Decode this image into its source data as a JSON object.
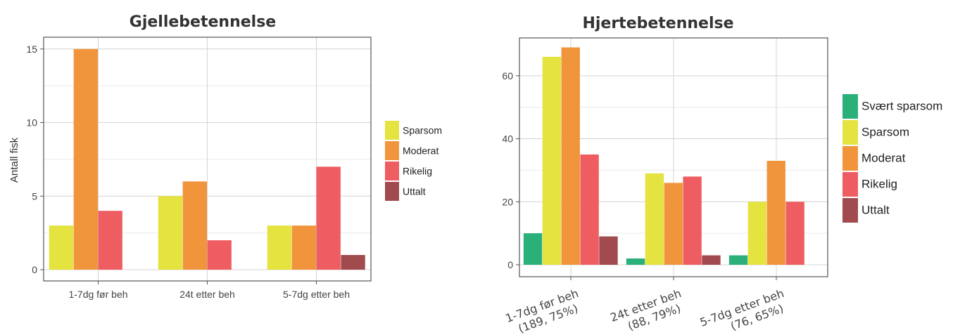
{
  "chart_data": [
    {
      "type": "bar",
      "title": "Gjellebetennelse",
      "ylabel": "Antall fisk",
      "xlabel": "",
      "ylim": [
        0,
        15.8
      ],
      "yticks": [
        0,
        5,
        10,
        15
      ],
      "grid": true,
      "legend_position": "right",
      "categories": [
        "1-7dg før beh",
        "24t etter beh",
        "5-7dg etter beh"
      ],
      "series": [
        {
          "name": "Sparsom",
          "color": "#e4e33f",
          "values": [
            3,
            5,
            3
          ]
        },
        {
          "name": "Moderat",
          "color": "#f1953d",
          "values": [
            15,
            6,
            3
          ]
        },
        {
          "name": "Rikelig",
          "color": "#ee5d62",
          "values": [
            4,
            2,
            7
          ]
        },
        {
          "name": "Uttalt",
          "color": "#a14b4e",
          "values": [
            0,
            0,
            1
          ]
        }
      ]
    },
    {
      "type": "bar",
      "title": "Hjertebetennelse",
      "ylabel": "",
      "xlabel": "",
      "ylim": [
        0,
        72
      ],
      "yticks": [
        0,
        20,
        40,
        60
      ],
      "grid": true,
      "legend_position": "right",
      "categories": [
        [
          "1-7dg før beh",
          "(189, 75%)"
        ],
        [
          "24t etter beh",
          "(88, 79%)"
        ],
        [
          "5-7dg etter beh",
          "(76, 65%)"
        ]
      ],
      "series": [
        {
          "name": "Svært sparsom",
          "color": "#2bb07a",
          "values": [
            10,
            2,
            3
          ]
        },
        {
          "name": "Sparsom",
          "color": "#e4e33f",
          "values": [
            66,
            29,
            20
          ]
        },
        {
          "name": "Moderat",
          "color": "#f1953d",
          "values": [
            69,
            26,
            33
          ]
        },
        {
          "name": "Rikelig",
          "color": "#ee5d62",
          "values": [
            35,
            28,
            20
          ]
        },
        {
          "name": "Uttalt",
          "color": "#a14b4e",
          "values": [
            9,
            3,
            0
          ]
        }
      ]
    }
  ]
}
